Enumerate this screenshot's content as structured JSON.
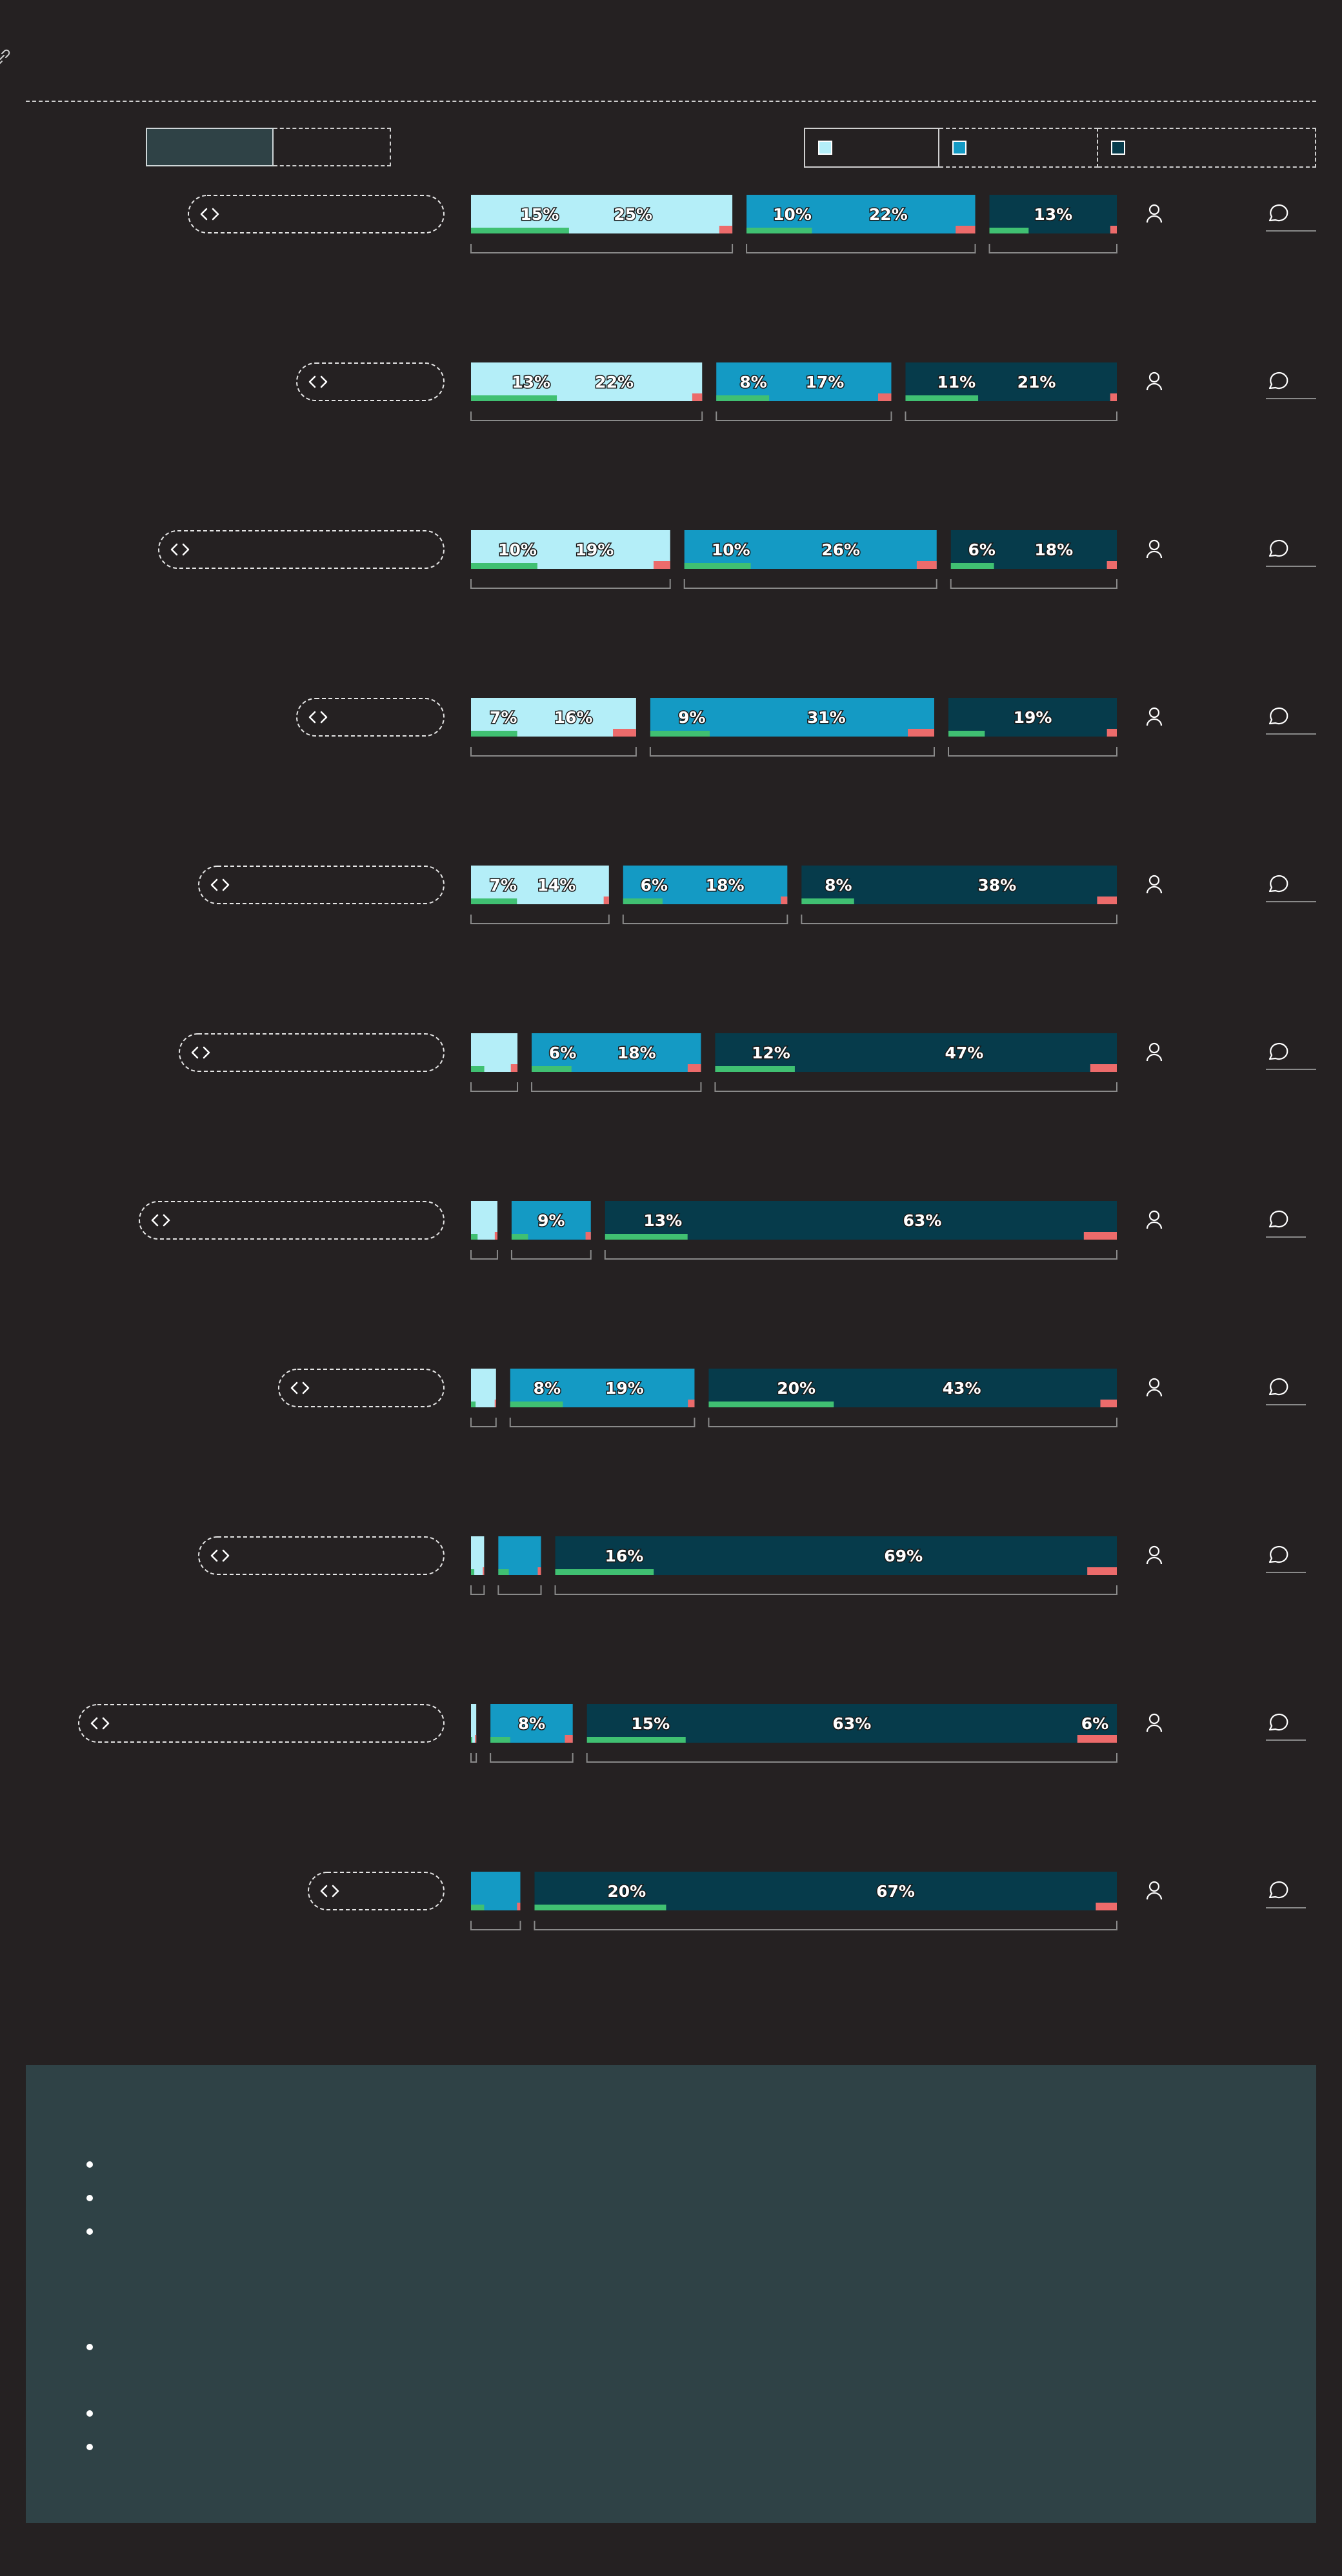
{
  "colors": {
    "light": "#b4eef8",
    "mid": "#149ac4",
    "dark": "#063b4b",
    "good": "#40c072",
    "bad": "#ec6b6b",
    "background": "#252122",
    "panel": "#2f4246"
  },
  "icons": {
    "row_icon": "code-brackets-icon",
    "person": "person-icon",
    "comment": "comment-icon",
    "link": "link-icon"
  },
  "toggle": {
    "options": [
      "",
      ""
    ]
  },
  "legend": {
    "items": [
      {
        "label": "",
        "color": "#b4eef8"
      },
      {
        "label": "",
        "color": "#149ac4"
      },
      {
        "label": "",
        "color": "#063b4b"
      }
    ]
  },
  "chart_data": {
    "type": "bar",
    "orientation": "horizontal",
    "stacked": true,
    "series": [
      {
        "name": "",
        "color": "#b4eef8"
      },
      {
        "name": "",
        "color": "#149ac4"
      },
      {
        "name": "",
        "color": "#063b4b"
      }
    ],
    "rows": [
      {
        "label": "",
        "groups": [
          {
            "total": 40,
            "good": 15,
            "bad": 2,
            "labels": [
              "15%",
              "25%"
            ]
          },
          {
            "total": 35,
            "good": 10,
            "bad": 3,
            "labels": [
              "10%",
              "22%"
            ]
          },
          {
            "total": 19.5,
            "good": 6,
            "bad": 1,
            "labels": [
              "13%"
            ]
          }
        ]
      },
      {
        "label": "",
        "groups": [
          {
            "total": 35,
            "good": 13,
            "bad": 1.5,
            "labels": [
              "13%",
              "22%"
            ]
          },
          {
            "total": 26.5,
            "good": 8,
            "bad": 2,
            "labels": [
              "8%",
              "17%"
            ]
          },
          {
            "total": 32,
            "good": 11,
            "bad": 1,
            "labels": [
              "11%",
              "21%"
            ]
          }
        ]
      },
      {
        "label": "",
        "groups": [
          {
            "total": 30,
            "good": 10,
            "bad": 2.5,
            "labels": [
              "10%",
              "19%"
            ]
          },
          {
            "total": 38,
            "good": 10,
            "bad": 3,
            "labels": [
              "10%",
              "26%"
            ]
          },
          {
            "total": 25,
            "good": 6.5,
            "bad": 1.5,
            "labels": [
              "6%",
              "18%"
            ]
          }
        ]
      },
      {
        "label": "",
        "groups": [
          {
            "total": 25,
            "good": 7,
            "bad": 3.5,
            "labels": [
              "7%",
              "16%"
            ]
          },
          {
            "total": 43,
            "good": 9,
            "bad": 4,
            "labels": [
              "9%",
              "31%"
            ]
          },
          {
            "total": 25.5,
            "good": 5.5,
            "bad": 1.5,
            "labels": [
              "19%"
            ]
          }
        ]
      },
      {
        "label": "",
        "groups": [
          {
            "total": 21,
            "good": 7,
            "bad": 0.8,
            "labels": [
              "7%",
              "14%"
            ]
          },
          {
            "total": 25,
            "good": 6,
            "bad": 1,
            "labels": [
              "6%",
              "18%"
            ]
          },
          {
            "total": 48,
            "good": 8,
            "bad": 3,
            "labels": [
              "8%",
              "38%"
            ]
          }
        ]
      },
      {
        "label": "",
        "groups": [
          {
            "total": 7,
            "good": 2,
            "bad": 1,
            "labels": []
          },
          {
            "total": 25.5,
            "good": 6,
            "bad": 2,
            "labels": [
              "6%",
              "18%"
            ]
          },
          {
            "total": 60.5,
            "good": 12,
            "bad": 4,
            "labels": [
              "12%",
              "47%"
            ]
          }
        ]
      },
      {
        "label": "",
        "groups": [
          {
            "total": 4,
            "good": 1,
            "bad": 0.4,
            "labels": []
          },
          {
            "total": 12,
            "good": 2.5,
            "bad": 0.8,
            "labels": [
              "9%"
            ]
          },
          {
            "total": 77.5,
            "good": 12.5,
            "bad": 5,
            "labels": [
              "13%",
              "63%"
            ]
          }
        ]
      },
      {
        "label": "",
        "groups": [
          {
            "total": 3.8,
            "good": 0.7,
            "bad": 0.2,
            "labels": []
          },
          {
            "total": 28,
            "good": 8,
            "bad": 1,
            "labels": [
              "8%",
              "19%"
            ]
          },
          {
            "total": 62,
            "good": 19,
            "bad": 2.5,
            "labels": [
              "20%",
              "43%"
            ]
          }
        ]
      },
      {
        "label": "",
        "groups": [
          {
            "total": 2,
            "good": 0.5,
            "bad": 0.2,
            "labels": []
          },
          {
            "total": 6.5,
            "good": 1.6,
            "bad": 0.5,
            "labels": []
          },
          {
            "total": 85.5,
            "good": 15,
            "bad": 4.5,
            "labels": [
              "16%",
              "69%"
            ]
          }
        ]
      },
      {
        "label": "",
        "groups": [
          {
            "total": 0.8,
            "good": 0.2,
            "bad": 0.1,
            "labels": []
          },
          {
            "total": 12.5,
            "good": 3,
            "bad": 1.2,
            "labels": [
              "8%"
            ]
          },
          {
            "total": 80.5,
            "good": 15,
            "bad": 6,
            "labels": [
              "15%",
              "63%",
              "6%"
            ]
          }
        ]
      },
      {
        "label": "",
        "groups": [
          {
            "total": 0,
            "good": 0,
            "bad": 0,
            "labels": []
          },
          {
            "total": 7.5,
            "good": 2,
            "bad": 0.5,
            "labels": []
          },
          {
            "total": 88.5,
            "good": 20,
            "bad": 3.2,
            "labels": [
              "20%",
              "67%"
            ]
          }
        ]
      }
    ]
  },
  "notes": {
    "items": [
      "",
      "",
      "",
      "",
      ""
    ]
  }
}
